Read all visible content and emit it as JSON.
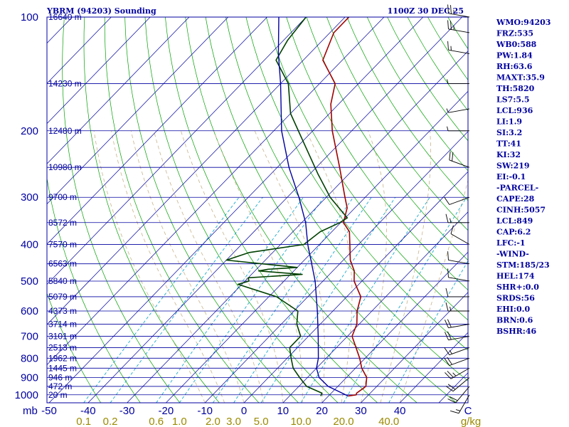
{
  "header": {
    "station": "YBRM (94203) Sounding",
    "time": "1100Z 30 DEC 25"
  },
  "colors": {
    "frame": "#0000a0",
    "isobar": "#0000a0",
    "isotherm": "#0000a0",
    "dry_adiabat": "#00a000",
    "moist_adiabat": "#c8b48c",
    "mixing_ratio": "#00a0c8",
    "temperature": "#a00000",
    "dewpoint": "#004000",
    "parcel": "#0000a0",
    "mixing_label": "#9a8a00",
    "wind": "#000000"
  },
  "chart_data": {
    "type": "skew-t",
    "pressure_unit": "mb",
    "temperature_unit": "C",
    "mixing_ratio_unit": "g/kg",
    "pressure_levels": [
      100,
      200,
      300,
      400,
      500,
      600,
      700,
      800,
      900,
      1000
    ],
    "height_levels": [
      {
        "p": 100,
        "label": "16640 m"
      },
      {
        "p": 150,
        "label": "14230 m"
      },
      {
        "p": 200,
        "label": "12480 m"
      },
      {
        "p": 250,
        "label": "10980 m"
      },
      {
        "p": 300,
        "label": "9700 m"
      },
      {
        "p": 350,
        "label": "8572 m"
      },
      {
        "p": 400,
        "label": "7570 m"
      },
      {
        "p": 450,
        "label": "6563 m"
      },
      {
        "p": 500,
        "label": "5840 m"
      },
      {
        "p": 550,
        "label": "5079 m"
      },
      {
        "p": 600,
        "label": "4373 m"
      },
      {
        "p": 650,
        "label": "3714 m"
      },
      {
        "p": 700,
        "label": "3101 m"
      },
      {
        "p": 750,
        "label": "2513 m"
      },
      {
        "p": 800,
        "label": "1962 m"
      },
      {
        "p": 850,
        "label": "1445 m"
      },
      {
        "p": 900,
        "label": "946 m"
      },
      {
        "p": 950,
        "label": "472 m"
      },
      {
        "p": 1000,
        "label": "20 m"
      }
    ],
    "temperature_ticks": [
      -50,
      -40,
      -30,
      -20,
      -10,
      0,
      10,
      20,
      30,
      40
    ],
    "mixing_ratio_ticks": [
      {
        "value": 0.1,
        "label": "0.1"
      },
      {
        "value": 0.2,
        "label": "0.2"
      },
      {
        "value": 0.6,
        "label": "0.6"
      },
      {
        "value": 1.0,
        "label": "1.0"
      },
      {
        "value": 2.0,
        "label": "2.0"
      },
      {
        "value": 3.0,
        "label": "3.0"
      },
      {
        "value": 5.0,
        "label": "5.0"
      },
      {
        "value": 10.0,
        "label": "10.0"
      },
      {
        "value": 20.0,
        "label": "20.0"
      },
      {
        "value": 40.0,
        "label": "40.0"
      }
    ],
    "series": [
      {
        "role": "temperature",
        "points": [
          [
            1007,
            25
          ],
          [
            1000,
            26.8
          ],
          [
            990,
            26.5
          ],
          [
            950,
            27.2
          ],
          [
            900,
            25.2
          ],
          [
            850,
            21.6
          ],
          [
            800,
            18.6
          ],
          [
            700,
            11.2
          ],
          [
            650,
            9.4
          ],
          [
            600,
            6.2
          ],
          [
            550,
            3.6
          ],
          [
            500,
            -2
          ],
          [
            470,
            -4.5
          ],
          [
            440,
            -8.2
          ],
          [
            400,
            -12.2
          ],
          [
            370,
            -15.5
          ],
          [
            350,
            -19.3
          ],
          [
            320,
            -22
          ],
          [
            300,
            -25.2
          ],
          [
            250,
            -34
          ],
          [
            200,
            -45
          ],
          [
            170,
            -52
          ],
          [
            150,
            -56
          ],
          [
            130,
            -65
          ],
          [
            110,
            -69
          ],
          [
            100,
            -69
          ]
        ]
      },
      {
        "role": "dewpoint",
        "points": [
          [
            1007,
            18
          ],
          [
            990,
            17.6
          ],
          [
            950,
            12
          ],
          [
            900,
            8
          ],
          [
            850,
            4
          ],
          [
            800,
            1
          ],
          [
            750,
            -2
          ],
          [
            700,
            -2
          ],
          [
            650,
            -6
          ],
          [
            600,
            -9
          ],
          [
            550,
            -18
          ],
          [
            510,
            -31
          ],
          [
            500,
            -29
          ],
          [
            490,
            -30
          ],
          [
            480,
            -17
          ],
          [
            470,
            -29
          ],
          [
            465,
            -27
          ],
          [
            460,
            -20
          ],
          [
            440,
            -40
          ],
          [
            420,
            -36
          ],
          [
            400,
            -24
          ],
          [
            370,
            -23
          ],
          [
            350,
            -20.2
          ],
          [
            340,
            -19.5
          ],
          [
            300,
            -29
          ],
          [
            260,
            -38
          ],
          [
            220,
            -48
          ],
          [
            180,
            -60
          ],
          [
            150,
            -68
          ],
          [
            130,
            -77
          ],
          [
            115,
            -79
          ],
          [
            100,
            -80
          ]
        ]
      },
      {
        "role": "parcel",
        "points": [
          [
            1007,
            25
          ],
          [
            950,
            17.5
          ],
          [
            900,
            13
          ],
          [
            850,
            10
          ],
          [
            800,
            8
          ],
          [
            700,
            2.5
          ],
          [
            600,
            -4
          ],
          [
            500,
            -12
          ],
          [
            400,
            -23
          ],
          [
            350,
            -29
          ],
          [
            300,
            -37
          ],
          [
            250,
            -47
          ],
          [
            200,
            -58
          ],
          [
            150,
            -70
          ],
          [
            125,
            -78
          ],
          [
            100,
            -87
          ]
        ]
      }
    ],
    "wind_barbs": [
      {
        "p": 1000,
        "dir": 210,
        "spd": 15
      },
      {
        "p": 950,
        "dir": 220,
        "spd": 20
      },
      {
        "p": 900,
        "dir": 230,
        "spd": 20
      },
      {
        "p": 850,
        "dir": 240,
        "spd": 25
      },
      {
        "p": 800,
        "dir": 250,
        "spd": 20
      },
      {
        "p": 750,
        "dir": 250,
        "spd": 15
      },
      {
        "p": 700,
        "dir": 260,
        "spd": 20
      },
      {
        "p": 650,
        "dir": 260,
        "spd": 20
      },
      {
        "p": 600,
        "dir": 270,
        "spd": 15
      },
      {
        "p": 550,
        "dir": 270,
        "spd": 10
      },
      {
        "p": 500,
        "dir": 280,
        "spd": 10
      },
      {
        "p": 450,
        "dir": 280,
        "spd": 10
      },
      {
        "p": 400,
        "dir": 300,
        "spd": 10
      },
      {
        "p": 350,
        "dir": 270,
        "spd": 15
      },
      {
        "p": 300,
        "dir": 250,
        "spd": 10
      },
      {
        "p": 250,
        "dir": 290,
        "spd": 20
      },
      {
        "p": 200,
        "dir": 270,
        "spd": 5
      },
      {
        "p": 175,
        "dir": 260,
        "spd": 5
      },
      {
        "p": 150,
        "dir": 270,
        "spd": 5
      },
      {
        "p": 125,
        "dir": 280,
        "spd": 15
      },
      {
        "p": 110,
        "dir": 280,
        "spd": 25
      },
      {
        "p": 100,
        "dir": 280,
        "spd": 25
      }
    ]
  },
  "indices": [
    "WMO:94203",
    "FRZ:535",
    "WB0:588",
    "PW:1.84",
    "RH:63.6",
    "MAXT:35.9",
    "TH:5820",
    "LS7:5.5",
    "LCL:936",
    "LI:1.9",
    "SI:3.2",
    "TT:41",
    "KI:32",
    "SW:219",
    "EI:-0.1",
    "-PARCEL-",
    "CAPE:28",
    "CINH:5057",
    "LCL:849",
    "CAP:6.2",
    "LFC:-1",
    "-WIND-",
    "STM:185/23",
    "HEL:174",
    "SHR+:0.0",
    "SRDS:56",
    "EHI:0.0",
    "BRN:0.6",
    "BSHR:46"
  ]
}
